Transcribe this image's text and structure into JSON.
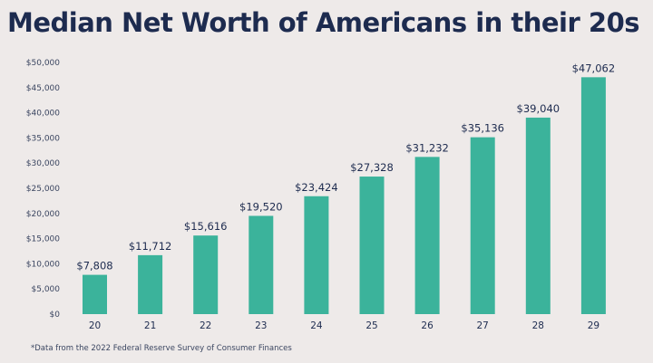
{
  "chart_data": {
    "type": "bar",
    "title": "Median Net Worth of Americans in their 20s",
    "xlabel": "",
    "ylabel": "",
    "categories": [
      "20",
      "21",
      "22",
      "23",
      "24",
      "25",
      "26",
      "27",
      "28",
      "29"
    ],
    "values": [
      7808,
      11712,
      15616,
      19520,
      23424,
      27328,
      31232,
      35136,
      39040,
      47062
    ],
    "data_labels": [
      "$7,808",
      "$11,712",
      "$15,616",
      "$19,520",
      "$23,424",
      "$27,328",
      "$31,232",
      "$35,136",
      "$39,040",
      "$47,062"
    ],
    "ylim": [
      0,
      50000
    ],
    "yticks": [
      0,
      5000,
      10000,
      15000,
      20000,
      25000,
      30000,
      35000,
      40000,
      45000,
      50000
    ],
    "ytick_labels": [
      "$0",
      "$5,000",
      "$10,000",
      "$15,000",
      "$20,000",
      "$25,000",
      "$30,000",
      "$35,000",
      "$40,000",
      "$45,000",
      "$50,000"
    ],
    "grid": false,
    "bar_color": "#3bb39b",
    "footnote": "*Data from the 2022 Federal Reserve Survey of Consumer Finances"
  }
}
